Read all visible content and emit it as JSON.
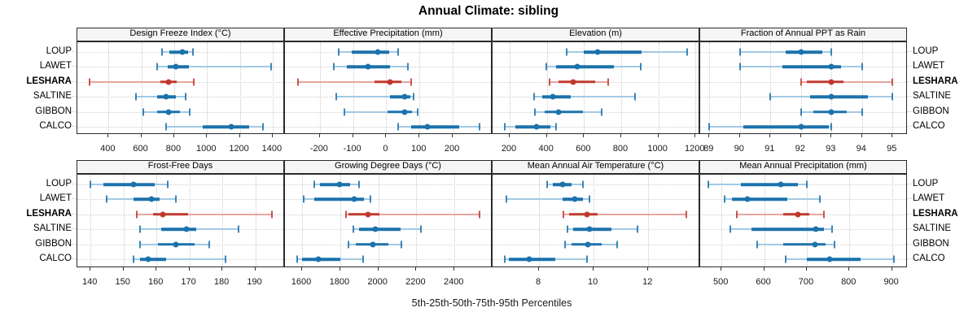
{
  "title": "Annual Climate: sibling",
  "caption": "5th-25th-50th-75th-95th Percentiles",
  "stations": [
    "LOUP",
    "LAWET",
    "LESHARA",
    "SALTINE",
    "GIBBON",
    "CALCO"
  ],
  "highlight_station": "LESHARA",
  "colors": {
    "normal_dark": "#1b72ac",
    "normal_light": "#a3c9e4",
    "highlight_dark": "#c0392e",
    "highlight_light": "#e6a6a1",
    "strip_bg": "#f5f5f5",
    "panel_border": "#2b2b2b",
    "grid": "#c9c9c9"
  },
  "chart_data": {
    "type": "scatter",
    "subtype": "percentile-dotplot-trellis",
    "title": "Annual Climate: sibling",
    "xlabel": "5th-25th-50th-75th-95th Percentiles",
    "legend_position": "none",
    "grid": "dotted",
    "percentiles": [
      5,
      25,
      50,
      75,
      95
    ],
    "categories": [
      "LOUP",
      "LAWET",
      "LESHARA",
      "SALTINE",
      "GIBBON",
      "CALCO"
    ],
    "panels": [
      {
        "row": 0,
        "col": 0,
        "title": "Design Freeze Index (°C)",
        "xlim": [
          210,
          1475
        ],
        "ticks": [
          400,
          600,
          800,
          1000,
          1200,
          1400
        ],
        "values": {
          "LOUP": [
            725,
            770,
            850,
            885,
            915
          ],
          "LAWET": [
            695,
            760,
            810,
            890,
            1390
          ],
          "LESHARA": [
            285,
            715,
            765,
            815,
            920
          ],
          "SALTINE": [
            565,
            695,
            750,
            810,
            870
          ],
          "GIBBON": [
            610,
            695,
            765,
            835,
            895
          ],
          "CALCO": [
            750,
            975,
            1150,
            1255,
            1340
          ]
        }
      },
      {
        "row": 0,
        "col": 1,
        "title": "Effective Precipitation (mm)",
        "xlim": [
          -305,
          320
        ],
        "ticks": [
          -200,
          -100,
          0,
          100,
          200
        ],
        "values": {
          "LOUP": [
            -143,
            -105,
            -25,
            8,
            35
          ],
          "LAWET": [
            -158,
            -118,
            -55,
            12,
            65
          ],
          "LESHARA": [
            -265,
            -35,
            10,
            45,
            75
          ],
          "SALTINE": [
            -150,
            10,
            55,
            72,
            82
          ],
          "GIBBON": [
            -125,
            5,
            55,
            78,
            95
          ],
          "CALCO": [
            35,
            75,
            125,
            220,
            280
          ]
        }
      },
      {
        "row": 0,
        "col": 2,
        "title": "Elevation (m)",
        "xlim": [
          108,
          1225
        ],
        "ticks": [
          200,
          400,
          600,
          800,
          1000,
          1200
        ],
        "values": {
          "LOUP": [
            505,
            600,
            675,
            910,
            1155
          ],
          "LAWET": [
            395,
            450,
            565,
            760,
            905
          ],
          "LESHARA": [
            415,
            465,
            540,
            660,
            730
          ],
          "SALTINE": [
            330,
            375,
            430,
            530,
            875
          ],
          "GIBBON": [
            335,
            390,
            465,
            595,
            695
          ],
          "CALCO": [
            175,
            230,
            345,
            420,
            450
          ]
        }
      },
      {
        "row": 0,
        "col": 3,
        "title": "Fraction of Annual PPT as Rain",
        "xlim": [
          88.7,
          95.5
        ],
        "ticks": [
          89,
          90,
          91,
          92,
          93,
          94,
          95
        ],
        "values": {
          "LOUP": [
            90,
            91.5,
            92,
            92.7,
            93
          ],
          "LAWET": [
            90,
            91.4,
            93,
            93.3,
            94
          ],
          "LESHARA": [
            92,
            92.2,
            93,
            93.4,
            95
          ],
          "SALTINE": [
            91,
            92.3,
            93,
            94.2,
            95
          ],
          "GIBBON": [
            92,
            92.4,
            93,
            93.5,
            94
          ],
          "CALCO": [
            89,
            90.1,
            92,
            92.9,
            93
          ]
        }
      },
      {
        "row": 1,
        "col": 0,
        "title": "Frost-Free Days",
        "xlim": [
          136,
          199
        ],
        "ticks": [
          140,
          150,
          160,
          170,
          180,
          190
        ],
        "values": {
          "LOUP": [
            140,
            144,
            153,
            159.5,
            163.5
          ],
          "LAWET": [
            145,
            153,
            158.5,
            161,
            166
          ],
          "LESHARA": [
            154,
            159,
            162,
            169.5,
            195
          ],
          "SALTINE": [
            155,
            161.5,
            169,
            172,
            185
          ],
          "GIBBON": [
            155,
            160.5,
            166,
            171.5,
            176
          ],
          "CALCO": [
            153,
            155,
            157.5,
            163,
            181
          ]
        }
      },
      {
        "row": 1,
        "col": 1,
        "title": "Growing Degree Days (°C)",
        "xlim": [
          1510,
          2600
        ],
        "ticks": [
          1600,
          1800,
          2000,
          2200,
          2400
        ],
        "values": {
          "LOUP": [
            1665,
            1695,
            1795,
            1850,
            1900
          ],
          "LAWET": [
            1610,
            1665,
            1875,
            1925,
            1960
          ],
          "LESHARA": [
            1830,
            1845,
            1945,
            2005,
            2530
          ],
          "SALTINE": [
            1870,
            1900,
            1985,
            2115,
            2225
          ],
          "GIBBON": [
            1845,
            1880,
            1970,
            2055,
            2120
          ],
          "CALCO": [
            1575,
            1600,
            1685,
            1800,
            1920
          ]
        }
      },
      {
        "row": 1,
        "col": 2,
        "title": "Mean Annual Air Temperature (°C)",
        "xlim": [
          6.3,
          13.9
        ],
        "ticks": [
          8,
          10,
          12
        ],
        "values": {
          "LOUP": [
            8.3,
            8.5,
            8.85,
            9.2,
            9.6
          ],
          "LAWET": [
            6.8,
            8.85,
            9.3,
            9.6,
            9.85
          ],
          "LESHARA": [
            8.9,
            9.1,
            9.75,
            10.15,
            13.4
          ],
          "SALTINE": [
            9.05,
            9.25,
            9.85,
            10.65,
            11.6
          ],
          "GIBBON": [
            8.95,
            9.2,
            9.8,
            10.3,
            10.85
          ],
          "CALCO": [
            6.75,
            6.9,
            7.65,
            8.6,
            9.75
          ]
        }
      },
      {
        "row": 1,
        "col": 3,
        "title": "Mean Annual Precipitation (mm)",
        "xlim": [
          450,
          937
        ],
        "ticks": [
          500,
          600,
          700,
          800,
          900
        ],
        "values": {
          "LOUP": [
            470,
            545,
            640,
            680,
            700
          ],
          "LAWET": [
            508,
            525,
            560,
            655,
            730
          ],
          "LESHARA": [
            535,
            645,
            680,
            705,
            740
          ],
          "SALTINE": [
            520,
            570,
            722,
            740,
            760
          ],
          "GIBBON": [
            583,
            645,
            720,
            745,
            765
          ],
          "CALCO": [
            650,
            700,
            753,
            827,
            905
          ]
        }
      }
    ]
  }
}
